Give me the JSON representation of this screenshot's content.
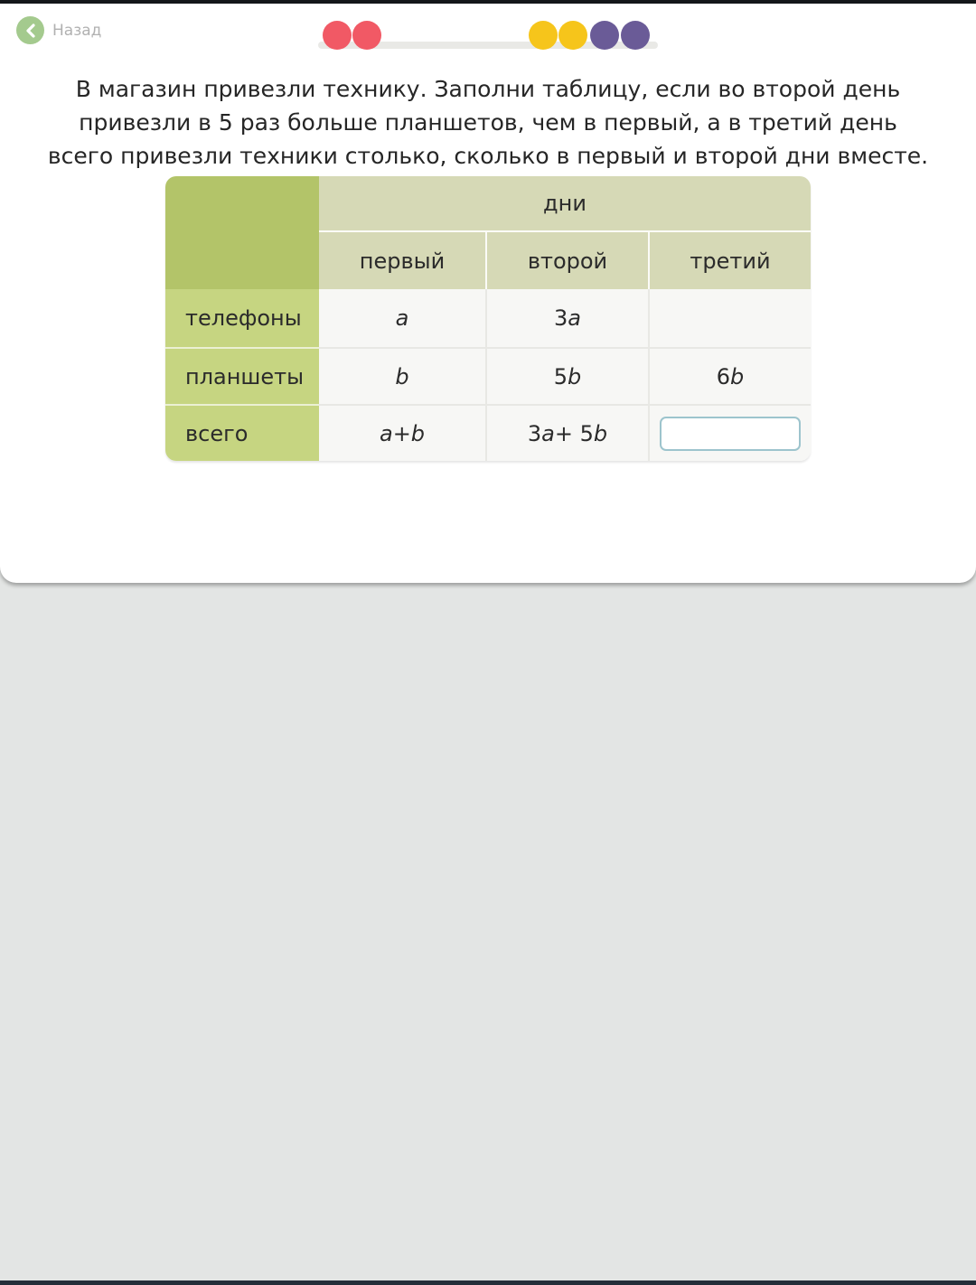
{
  "topbar": {
    "back_label": "Назад"
  },
  "progress": {
    "dots": [
      {
        "name": "dot-1",
        "color": "#f15965"
      },
      {
        "name": "dot-2",
        "color": "#f15965"
      },
      {
        "name": "dot-3",
        "color": "#f6c51b"
      },
      {
        "name": "dot-4",
        "color": "#f6c51b"
      },
      {
        "name": "dot-5",
        "color": "#6a5b97"
      },
      {
        "name": "dot-6",
        "color": "#6a5b97"
      }
    ]
  },
  "problem": {
    "lines": [
      "В магазин привезли технику. Заполни таблицу, если во второй день",
      "привезли в 5 раз больше планшетов, чем в первый, а в третий день",
      "всего привезли техники столько, сколько в первый и второй дни вместе."
    ]
  },
  "table": {
    "days_header": "дни",
    "col_headers": [
      "первый",
      "второй",
      "третий"
    ],
    "row_headers": [
      "телефоны",
      "планшеты",
      "всего"
    ],
    "cells": [
      [
        "a",
        "3a",
        ""
      ],
      [
        "b",
        "5b",
        "6b"
      ],
      [
        "a + b",
        "3a + 5b",
        ""
      ]
    ],
    "input": {
      "value": "",
      "row": "всего",
      "col": "третий"
    }
  },
  "colors": {
    "page_bg": "#e3e5e4",
    "top_strip": "#14171a",
    "bottom_strip": "#242d39",
    "back_circle": "#a4ca8e",
    "track": "#e9e9e6",
    "dot_red": "#f15965",
    "dot_yellow": "#f6c51b",
    "dot_purple": "#6a5b97",
    "tbl_corner": "#b3c469",
    "tbl_header": "#d6d9b6",
    "tbl_label": "#c6d581",
    "tbl_cell": "#f7f7f5",
    "input_border": "#9dc4cd"
  }
}
